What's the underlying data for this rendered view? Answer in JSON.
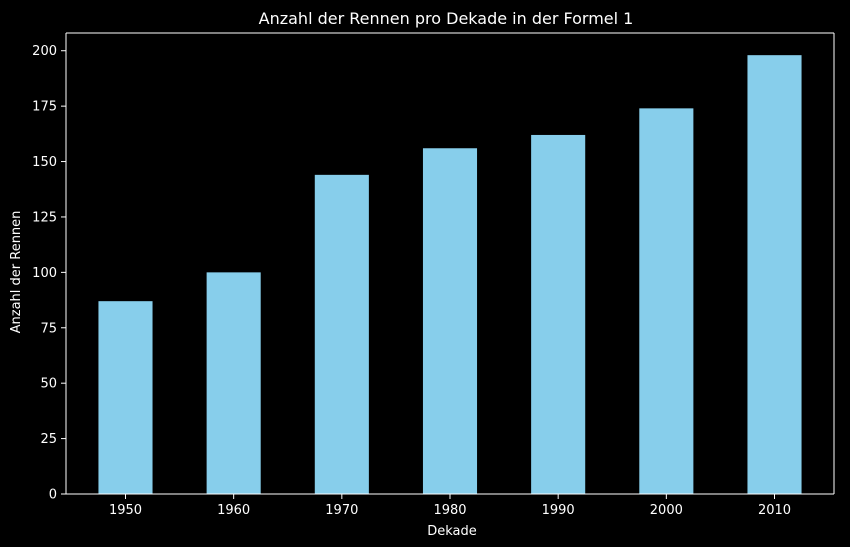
{
  "chart_data": {
    "type": "bar",
    "title": "Anzahl der Rennen pro Dekade in der Formel 1",
    "xlabel": "Dekade",
    "ylabel": "Anzahl der Rennen",
    "categories": [
      "1950",
      "1960",
      "1970",
      "1980",
      "1990",
      "2000",
      "2010"
    ],
    "values": [
      87,
      100,
      144,
      156,
      162,
      174,
      198
    ],
    "ylim": [
      0,
      208
    ],
    "yticks": [
      0,
      25,
      50,
      75,
      100,
      125,
      150,
      175,
      200
    ],
    "grid": false,
    "legend": "none",
    "bar_color": "#87CEEB",
    "background_color": "#000000",
    "axis_color": "#ffffff"
  }
}
